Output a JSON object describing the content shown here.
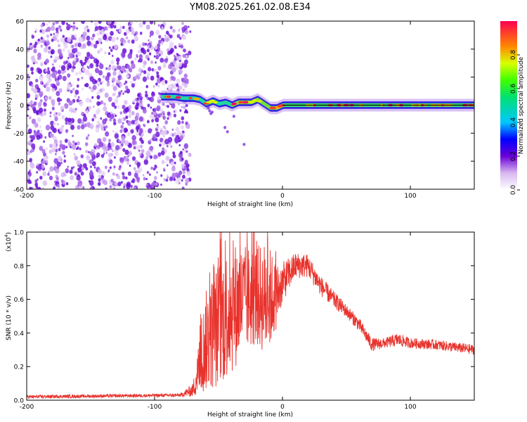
{
  "title": "YM08.2025.261.02.08.E34",
  "colorbar": {
    "label": "Normalized spectral amplitude",
    "ticks": [
      "0.0",
      "0.2",
      "0.4",
      "0.6",
      "0.8"
    ],
    "tick_values": [
      0.0,
      0.2,
      0.4,
      0.6,
      0.8
    ],
    "range": [
      0,
      1
    ]
  },
  "chart_data": [
    {
      "type": "heatmap",
      "title": "YM08.2025.261.02.08.E34",
      "xlabel": "Height of straight line (km)",
      "ylabel": "Frequency (Hz)",
      "xlim": [
        -200,
        150
      ],
      "ylim": [
        -60,
        60
      ],
      "xticks": [
        -200,
        -100,
        0,
        100
      ],
      "xtick_labels": [
        "-200",
        "-100",
        "0",
        "100"
      ],
      "yticks": [
        -60,
        -40,
        -20,
        0,
        20,
        40,
        60
      ],
      "ytick_labels": [
        "-60",
        "-40",
        "-20",
        "0",
        "20",
        "40",
        "60"
      ],
      "noise_region_x": [
        -200,
        -80
      ],
      "signal_ridge": [
        {
          "x": -95,
          "y": 6
        },
        {
          "x": -85,
          "y": 6
        },
        {
          "x": -78,
          "y": 5
        },
        {
          "x": -70,
          "y": 5
        },
        {
          "x": -65,
          "y": 4
        },
        {
          "x": -60,
          "y": 1
        },
        {
          "x": -55,
          "y": 3
        },
        {
          "x": -50,
          "y": 1
        },
        {
          "x": -45,
          "y": 2
        },
        {
          "x": -40,
          "y": 0
        },
        {
          "x": -35,
          "y": 2
        },
        {
          "x": -30,
          "y": 2
        },
        {
          "x": -25,
          "y": 2
        },
        {
          "x": -20,
          "y": 4
        },
        {
          "x": -15,
          "y": 1
        },
        {
          "x": -10,
          "y": -2
        },
        {
          "x": -5,
          "y": -2
        },
        {
          "x": 0,
          "y": 0
        },
        {
          "x": 50,
          "y": 0
        },
        {
          "x": 100,
          "y": 0
        },
        {
          "x": 150,
          "y": 0
        }
      ]
    },
    {
      "type": "line",
      "xlabel": "Height of straight line (km)",
      "ylabel": "SNR (10 * v/v)",
      "multiplier_label": "(x10",
      "multiplier_exponent": "4",
      "xlim": [
        -200,
        150
      ],
      "ylim": [
        0,
        1.0
      ],
      "xticks": [
        -200,
        -100,
        0,
        100
      ],
      "xtick_labels": [
        "-200",
        "-100",
        "0",
        "100"
      ],
      "yticks": [
        0,
        0.2,
        0.4,
        0.6,
        0.8,
        1.0
      ],
      "ytick_labels": [
        "0.0",
        "0.2",
        "0.4",
        "0.6",
        "0.8",
        "1.0"
      ],
      "series": [
        {
          "name": "SNR",
          "color": "#e8322c",
          "envelope": [
            {
              "x": -200,
              "mean": 0.02,
              "amp": 0.01
            },
            {
              "x": -80,
              "mean": 0.03,
              "amp": 0.01
            },
            {
              "x": -70,
              "mean": 0.06,
              "amp": 0.04
            },
            {
              "x": -65,
              "mean": 0.2,
              "amp": 0.18
            },
            {
              "x": -60,
              "mean": 0.35,
              "amp": 0.3
            },
            {
              "x": -50,
              "mean": 0.45,
              "amp": 0.38
            },
            {
              "x": -40,
              "mean": 0.55,
              "amp": 0.4
            },
            {
              "x": -30,
              "mean": 0.6,
              "amp": 0.32
            },
            {
              "x": -20,
              "mean": 0.62,
              "amp": 0.3
            },
            {
              "x": -12,
              "mean": 0.6,
              "amp": 0.35
            },
            {
              "x": -5,
              "mean": 0.62,
              "amp": 0.2
            },
            {
              "x": 0,
              "mean": 0.7,
              "amp": 0.12
            },
            {
              "x": 10,
              "mean": 0.8,
              "amp": 0.08
            },
            {
              "x": 20,
              "mean": 0.8,
              "amp": 0.07
            },
            {
              "x": 30,
              "mean": 0.68,
              "amp": 0.06
            },
            {
              "x": 40,
              "mean": 0.6,
              "amp": 0.05
            },
            {
              "x": 50,
              "mean": 0.53,
              "amp": 0.04
            },
            {
              "x": 60,
              "mean": 0.45,
              "amp": 0.04
            },
            {
              "x": 70,
              "mean": 0.33,
              "amp": 0.04
            },
            {
              "x": 80,
              "mean": 0.34,
              "amp": 0.03
            },
            {
              "x": 90,
              "mean": 0.36,
              "amp": 0.04
            },
            {
              "x": 100,
              "mean": 0.34,
              "amp": 0.03
            },
            {
              "x": 120,
              "mean": 0.33,
              "amp": 0.03
            },
            {
              "x": 150,
              "mean": 0.3,
              "amp": 0.03
            }
          ]
        }
      ]
    }
  ]
}
